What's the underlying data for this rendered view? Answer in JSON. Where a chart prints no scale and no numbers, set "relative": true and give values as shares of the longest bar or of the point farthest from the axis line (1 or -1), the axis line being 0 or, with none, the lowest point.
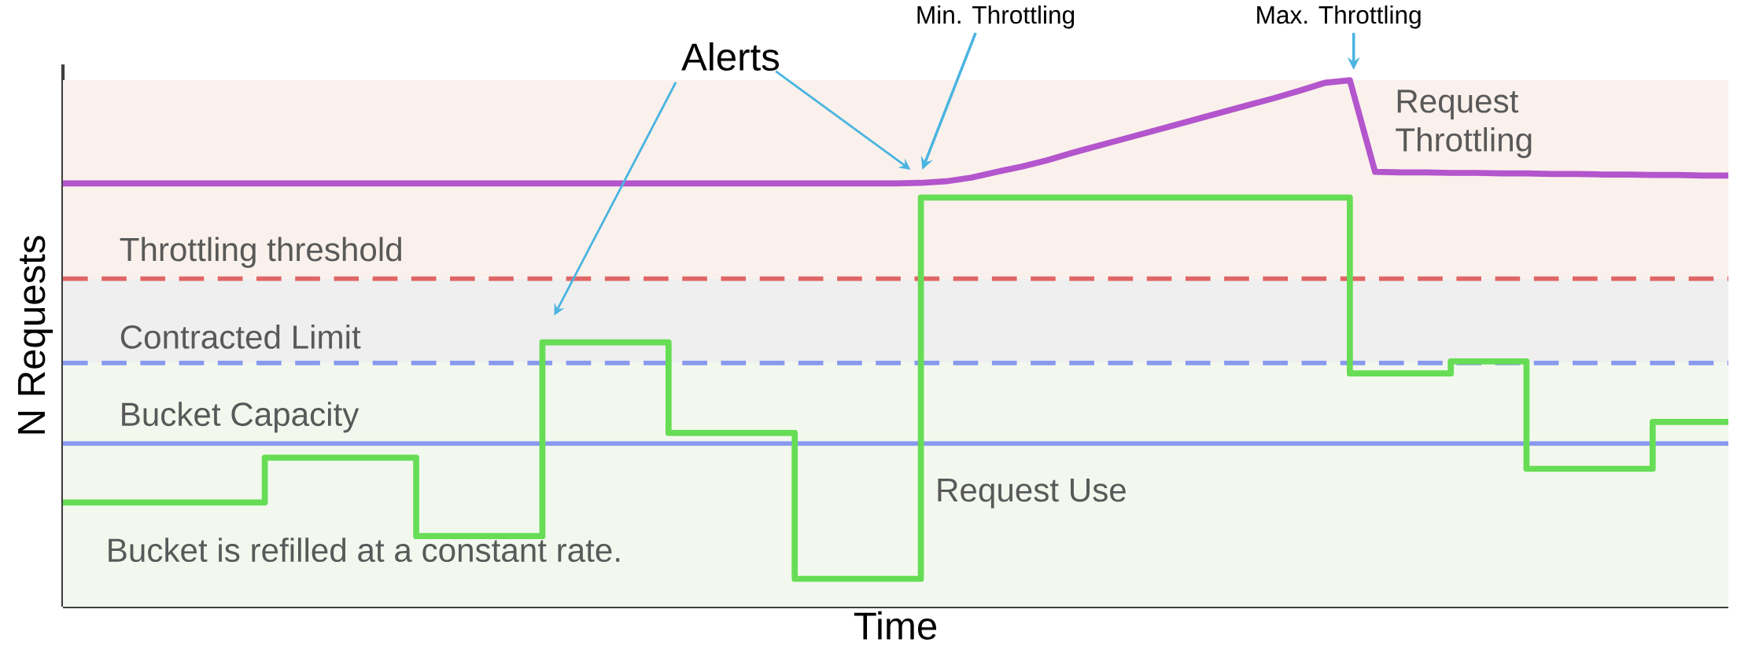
{
  "chart_data": {
    "type": "line",
    "relative": true,
    "xlabel": "Time",
    "ylabel": "N Requests",
    "tick_labels": false,
    "categories": [
      null,
      null,
      null,
      null,
      null,
      null,
      null,
      null,
      null,
      null,
      null,
      null,
      null,
      null,
      null,
      null,
      null,
      null,
      null,
      null,
      null,
      null,
      null,
      null,
      null,
      null,
      null,
      null,
      null,
      null,
      null,
      null,
      null,
      null,
      null,
      null,
      null,
      null,
      null,
      null,
      null,
      null,
      null,
      null,
      null,
      null,
      null,
      null,
      null,
      null,
      null,
      null,
      null,
      null,
      null,
      null,
      null,
      null,
      null,
      null,
      null,
      null,
      null,
      null,
      null,
      null,
      null
    ],
    "series": [
      {
        "name": "Request Use",
        "type": "step",
        "color": "#66dd55",
        "values": [
          0.198,
          0.198,
          0.198,
          0.198,
          0.198,
          0.198,
          0.198,
          0.198,
          0.283,
          0.283,
          0.283,
          0.283,
          0.283,
          0.283,
          0.134,
          0.134,
          0.134,
          0.134,
          0.134,
          0.502,
          0.502,
          0.502,
          0.502,
          0.502,
          0.33,
          0.33,
          0.33,
          0.33,
          0.33,
          0.053,
          0.053,
          0.053,
          0.053,
          0.053,
          0.777,
          0.777,
          0.777,
          0.777,
          0.777,
          0.777,
          0.777,
          0.777,
          0.777,
          0.777,
          0.777,
          0.777,
          0.777,
          0.777,
          0.777,
          0.777,
          0.777,
          0.443,
          0.443,
          0.443,
          0.443,
          0.466,
          0.466,
          0.466,
          0.262,
          0.262,
          0.262,
          0.262,
          0.262,
          0.351,
          0.351,
          0.351,
          0.351
        ]
      },
      {
        "name": "Request Throttling",
        "color": "#b355cc",
        "values": [
          0.804,
          0.804,
          0.804,
          0.804,
          0.804,
          0.804,
          0.804,
          0.804,
          0.804,
          0.804,
          0.804,
          0.804,
          0.804,
          0.804,
          0.804,
          0.804,
          0.804,
          0.804,
          0.804,
          0.804,
          0.804,
          0.804,
          0.804,
          0.804,
          0.804,
          0.804,
          0.804,
          0.804,
          0.804,
          0.804,
          0.804,
          0.804,
          0.804,
          0.804,
          0.805,
          0.808,
          0.815,
          0.826,
          0.836,
          0.848,
          0.862,
          0.875,
          0.888,
          0.901,
          0.914,
          0.927,
          0.94,
          0.953,
          0.966,
          0.98,
          0.995,
          1.0,
          0.826,
          0.825,
          0.825,
          0.824,
          0.824,
          0.823,
          0.823,
          0.822,
          0.822,
          0.821,
          0.821,
          0.82,
          0.82,
          0.819,
          0.819
        ]
      }
    ],
    "ref_lines": [
      {
        "axis": "y",
        "value": 0.31,
        "label": "Bucket Capacity",
        "color": "#8899ee",
        "line_style": "solid"
      },
      {
        "axis": "y",
        "value": 0.463,
        "label": "Contracted Limit",
        "color": "#8899ee",
        "line_style": "dashed"
      },
      {
        "axis": "y",
        "value": 0.623,
        "label": "Throttling threshold",
        "color": "#e06666",
        "line_style": "dashed"
      }
    ],
    "bands": [
      {
        "axis": "y",
        "from": 0,
        "to": 0.463,
        "color": "#f3f8ee"
      },
      {
        "axis": "y",
        "from": 0.463,
        "to": 0.623,
        "color": "#efefef"
      },
      {
        "axis": "y",
        "from": 0.623,
        "to": 1.0,
        "color": "#fbf1ec"
      }
    ],
    "annotations": [
      "Alerts",
      "Min. Throttling",
      "Max. Throttling",
      "Bucket is refilled at a constant rate."
    ]
  }
}
